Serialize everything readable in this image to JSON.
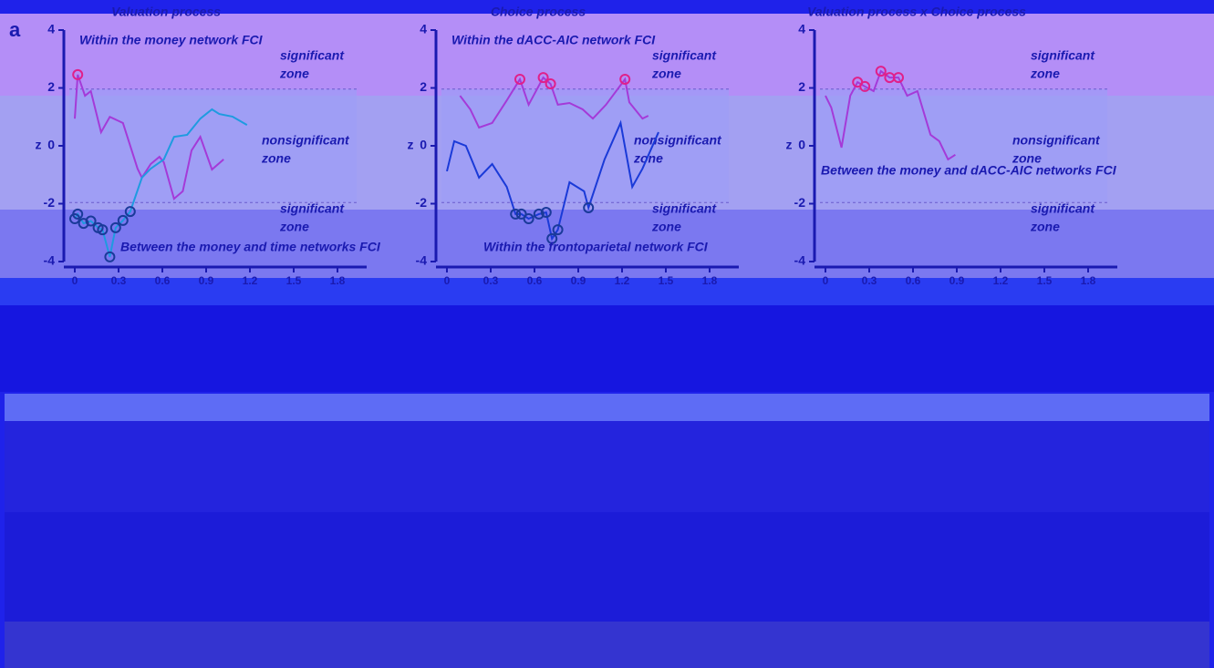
{
  "figure_label": "a",
  "chart_data": [
    {
      "type": "line",
      "title": "Valuation process",
      "y_label": "z",
      "xlim": [
        0,
        2
      ],
      "xticks": [
        0,
        0.3,
        0.6,
        0.9,
        1.2,
        1.5,
        1.8
      ],
      "ylim": [
        -4,
        4
      ],
      "yticks": [
        -4,
        -2,
        0,
        2,
        4
      ],
      "significance_threshold": 1.96,
      "zone_labels": [
        [
          "significant",
          "zone"
        ],
        [
          "nonsignificant",
          "zone"
        ],
        [
          "significant",
          "zone"
        ]
      ],
      "series": [
        {
          "name": "Within the money network FCI",
          "color": "#a43ad8",
          "marker_color": "#e0208a",
          "x": [
            0,
            0.02,
            0.07,
            0.11,
            0.18,
            0.24,
            0.33,
            0.43,
            0.46,
            0.52,
            0.58,
            0.61,
            0.68,
            0.74,
            0.8,
            0.86,
            0.94,
            1.02
          ],
          "values": [
            0.94,
            2.46,
            1.73,
            1.89,
            0.47,
            1.0,
            0.79,
            -0.79,
            -1.1,
            -0.63,
            -0.38,
            -0.57,
            -1.83,
            -1.57,
            -0.16,
            0.31,
            -0.82,
            -0.47
          ]
        },
        {
          "name": "Between the money and time networks FCI",
          "color": "#1e9be0",
          "marker_color": "#1a3a9a",
          "x": [
            0,
            0.02,
            0.06,
            0.11,
            0.16,
            0.19,
            0.24,
            0.28,
            0.33,
            0.38,
            0.46,
            0.52,
            0.61,
            0.68,
            0.77,
            0.86,
            0.94,
            0.99,
            1.08,
            1.18
          ],
          "values": [
            -2.52,
            -2.36,
            -2.68,
            -2.6,
            -2.83,
            -2.9,
            -3.84,
            -2.83,
            -2.58,
            -2.27,
            -1.1,
            -0.79,
            -0.47,
            0.31,
            0.38,
            0.94,
            1.26,
            1.1,
            1.01,
            0.72
          ]
        }
      ]
    },
    {
      "type": "line",
      "title": "Choice process",
      "y_label": "z",
      "xlim": [
        0,
        2
      ],
      "xticks": [
        0,
        0.3,
        0.6,
        0.9,
        1.2,
        1.5,
        1.8
      ],
      "ylim": [
        -4,
        4
      ],
      "yticks": [
        -4,
        -2,
        0,
        2,
        4
      ],
      "significance_threshold": 1.96,
      "zone_labels": [
        [
          "significant",
          "zone"
        ],
        [
          "nonsignificant",
          "zone"
        ],
        [
          "significant",
          "zone"
        ]
      ],
      "series": [
        {
          "name": "Within the dACC-AIC network FCI",
          "color": "#a43ad8",
          "marker_color": "#e0208a",
          "x": [
            0.09,
            0.16,
            0.22,
            0.31,
            0.41,
            0.5,
            0.56,
            0.66,
            0.71,
            0.76,
            0.84,
            0.93,
            1.0,
            1.09,
            1.22,
            1.25,
            1.34,
            1.38
          ],
          "values": [
            1.73,
            1.26,
            0.63,
            0.79,
            1.57,
            2.3,
            1.42,
            2.36,
            2.14,
            1.42,
            1.48,
            1.26,
            0.94,
            1.42,
            2.3,
            1.5,
            0.94,
            1.04
          ]
        },
        {
          "name": "Within the frontoparietal network FCI",
          "color": "#1a3ad8",
          "marker_color": "#1a3a9a",
          "x": [
            0,
            0.05,
            0.13,
            0.22,
            0.31,
            0.41,
            0.47,
            0.51,
            0.56,
            0.63,
            0.68,
            0.72,
            0.76,
            0.84,
            0.94,
            0.97,
            1.08,
            1.19,
            1.27,
            1.34,
            1.45
          ],
          "values": [
            -0.88,
            0.16,
            0,
            -1.1,
            -0.63,
            -1.42,
            -2.36,
            -2.36,
            -2.52,
            -2.36,
            -2.3,
            -3.21,
            -2.9,
            -1.26,
            -1.57,
            -2.14,
            -0.47,
            0.79,
            -1.42,
            -0.79,
            0.47
          ]
        }
      ]
    },
    {
      "type": "line",
      "title": "Valuation process x Choice process",
      "y_label": "z",
      "xlim": [
        0,
        2
      ],
      "xticks": [
        0,
        0.3,
        0.6,
        0.9,
        1.2,
        1.5,
        1.8
      ],
      "ylim": [
        -4,
        4
      ],
      "yticks": [
        -4,
        -2,
        0,
        2,
        4
      ],
      "significance_threshold": 1.96,
      "zone_labels": [
        [
          "significant",
          "zone"
        ],
        [
          "nonsignificant",
          "zone"
        ],
        [
          "significant",
          "zone"
        ]
      ],
      "series": [
        {
          "name": "Between the money and dACC-AIC networks FCI",
          "color": "#a43ad8",
          "marker_color": "#e0208a",
          "x": [
            0,
            0.04,
            0.11,
            0.17,
            0.22,
            0.27,
            0.33,
            0.38,
            0.44,
            0.5,
            0.56,
            0.63,
            0.72,
            0.78,
            0.84,
            0.89
          ],
          "values": [
            1.73,
            1.32,
            -0.06,
            1.73,
            2.2,
            2.05,
            1.89,
            2.58,
            2.36,
            2.36,
            1.73,
            1.89,
            0.38,
            0.16,
            -0.47,
            -0.31
          ]
        }
      ]
    }
  ]
}
